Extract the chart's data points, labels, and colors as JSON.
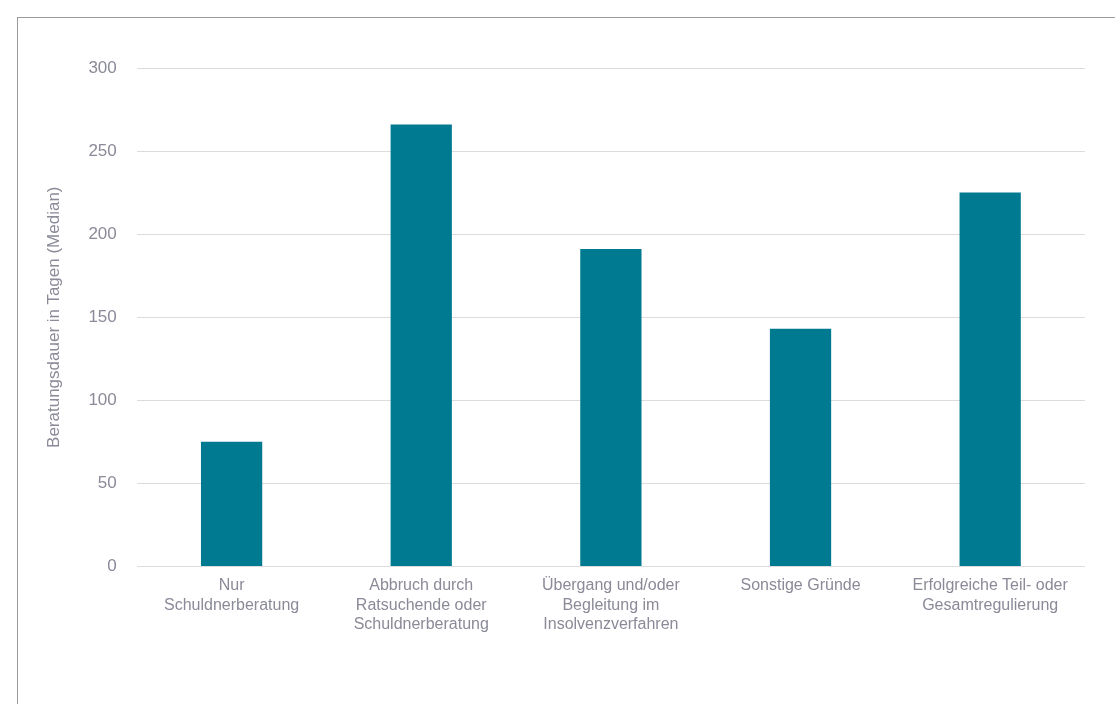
{
  "chart_data": {
    "type": "bar",
    "ylabel": "Beratungsdauer in Tagen (Median)",
    "categories": [
      "Nur Schuldnerberatung",
      "Abbruch durch Ratsuchende oder Schuldnerberatung",
      "Übergang und/oder Begleitung im Insolvenzverfahren",
      "Sonstige Gründe",
      "Erfolgreiche Teil- oder Gesamtregulierung"
    ],
    "values": [
      75,
      266,
      191,
      143,
      225
    ],
    "color": "#007a91",
    "ylim": [
      0,
      300
    ],
    "yticks": [
      0,
      50,
      100,
      150,
      200,
      250,
      300
    ],
    "grid": "y",
    "legend": false
  }
}
